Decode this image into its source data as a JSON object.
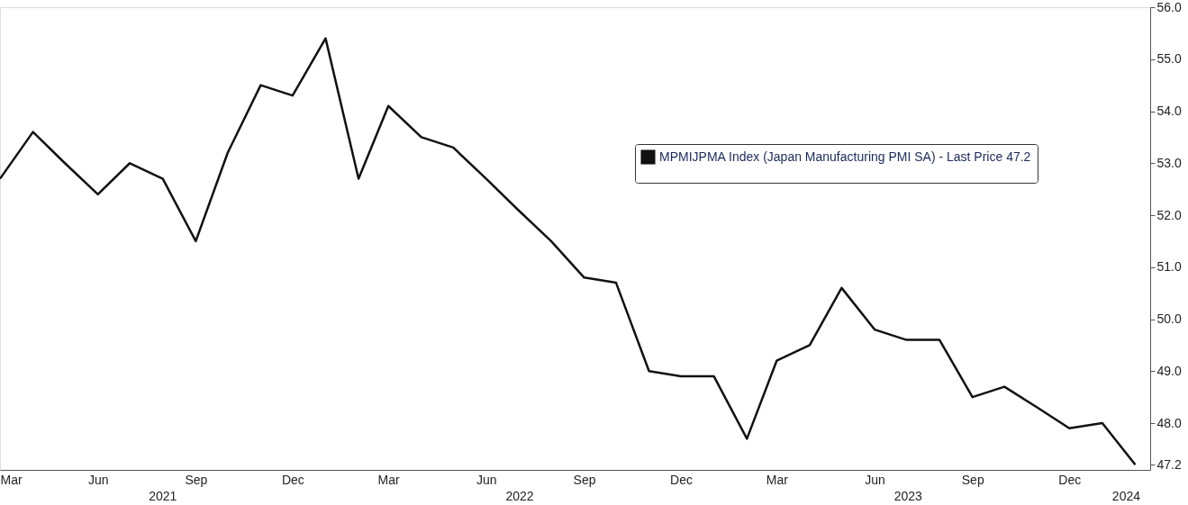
{
  "chart_data": {
    "type": "line",
    "x": [
      "2021-03-01",
      "2021-04-01",
      "2021-05-01",
      "2021-06-01",
      "2021-07-01",
      "2021-08-01",
      "2021-09-01",
      "2021-10-01",
      "2021-11-01",
      "2021-12-01",
      "2022-01-01",
      "2022-02-01",
      "2022-03-01",
      "2022-04-01",
      "2022-05-01",
      "2022-06-01",
      "2022-07-01",
      "2022-08-01",
      "2022-09-01",
      "2022-10-01",
      "2022-11-01",
      "2022-12-01",
      "2023-01-01",
      "2023-02-01",
      "2023-03-01",
      "2023-04-01",
      "2023-05-01",
      "2023-06-01",
      "2023-07-01",
      "2023-08-01",
      "2023-09-01",
      "2023-10-01",
      "2023-11-01",
      "2023-12-01",
      "2024-01-01",
      "2024-02-01"
    ],
    "series": [
      {
        "name": "MPMIJPMA Index (Japan Manufacturing PMI SA) - Last Price 47.2",
        "color": "#111111",
        "values": [
          52.7,
          53.6,
          53.0,
          52.4,
          53.0,
          52.7,
          51.5,
          53.2,
          54.5,
          54.3,
          55.4,
          52.7,
          54.1,
          53.5,
          53.3,
          52.7,
          52.1,
          51.5,
          50.8,
          50.7,
          49.0,
          48.9,
          48.9,
          47.7,
          49.2,
          49.5,
          50.6,
          49.8,
          49.6,
          49.6,
          48.5,
          48.7,
          48.3,
          47.9,
          48.0,
          47.2
        ]
      }
    ],
    "xlim": [
      "2021-03-01",
      "2024-02-15"
    ],
    "xticks": [
      {
        "value": "2021-03-01",
        "label": "Mar"
      },
      {
        "value": "2021-06-01",
        "label": "Jun"
      },
      {
        "value": "2021-09-01",
        "label": "Sep"
      },
      {
        "value": "2021-12-01",
        "label": "Dec"
      },
      {
        "value": "2022-03-01",
        "label": "Mar"
      },
      {
        "value": "2022-06-01",
        "label": "Jun"
      },
      {
        "value": "2022-09-01",
        "label": "Sep"
      },
      {
        "value": "2022-12-01",
        "label": "Dec"
      },
      {
        "value": "2023-03-01",
        "label": "Mar"
      },
      {
        "value": "2023-06-01",
        "label": "Jun"
      },
      {
        "value": "2023-09-01",
        "label": "Sep"
      },
      {
        "value": "2023-12-01",
        "label": "Dec"
      }
    ],
    "ylim": [
      47.1,
      56.0
    ],
    "yticks": [
      {
        "value": 47.2,
        "label": "47.2"
      },
      {
        "value": 48,
        "label": "48.0"
      },
      {
        "value": 49,
        "label": "49.0"
      },
      {
        "value": 50,
        "label": "50.0"
      },
      {
        "value": 51,
        "label": "51.0"
      },
      {
        "value": 52,
        "label": "52.0"
      },
      {
        "value": 53,
        "label": "53.0"
      },
      {
        "value": 54,
        "label": "54.0"
      },
      {
        "value": 55,
        "label": "55.0"
      },
      {
        "value": 56,
        "label": "56.0"
      }
    ],
    "annotations": [
      "2021",
      "2022",
      "2023",
      "2024"
    ],
    "grid": false,
    "legend": "right",
    "line_style": "solid",
    "marker": "none"
  }
}
